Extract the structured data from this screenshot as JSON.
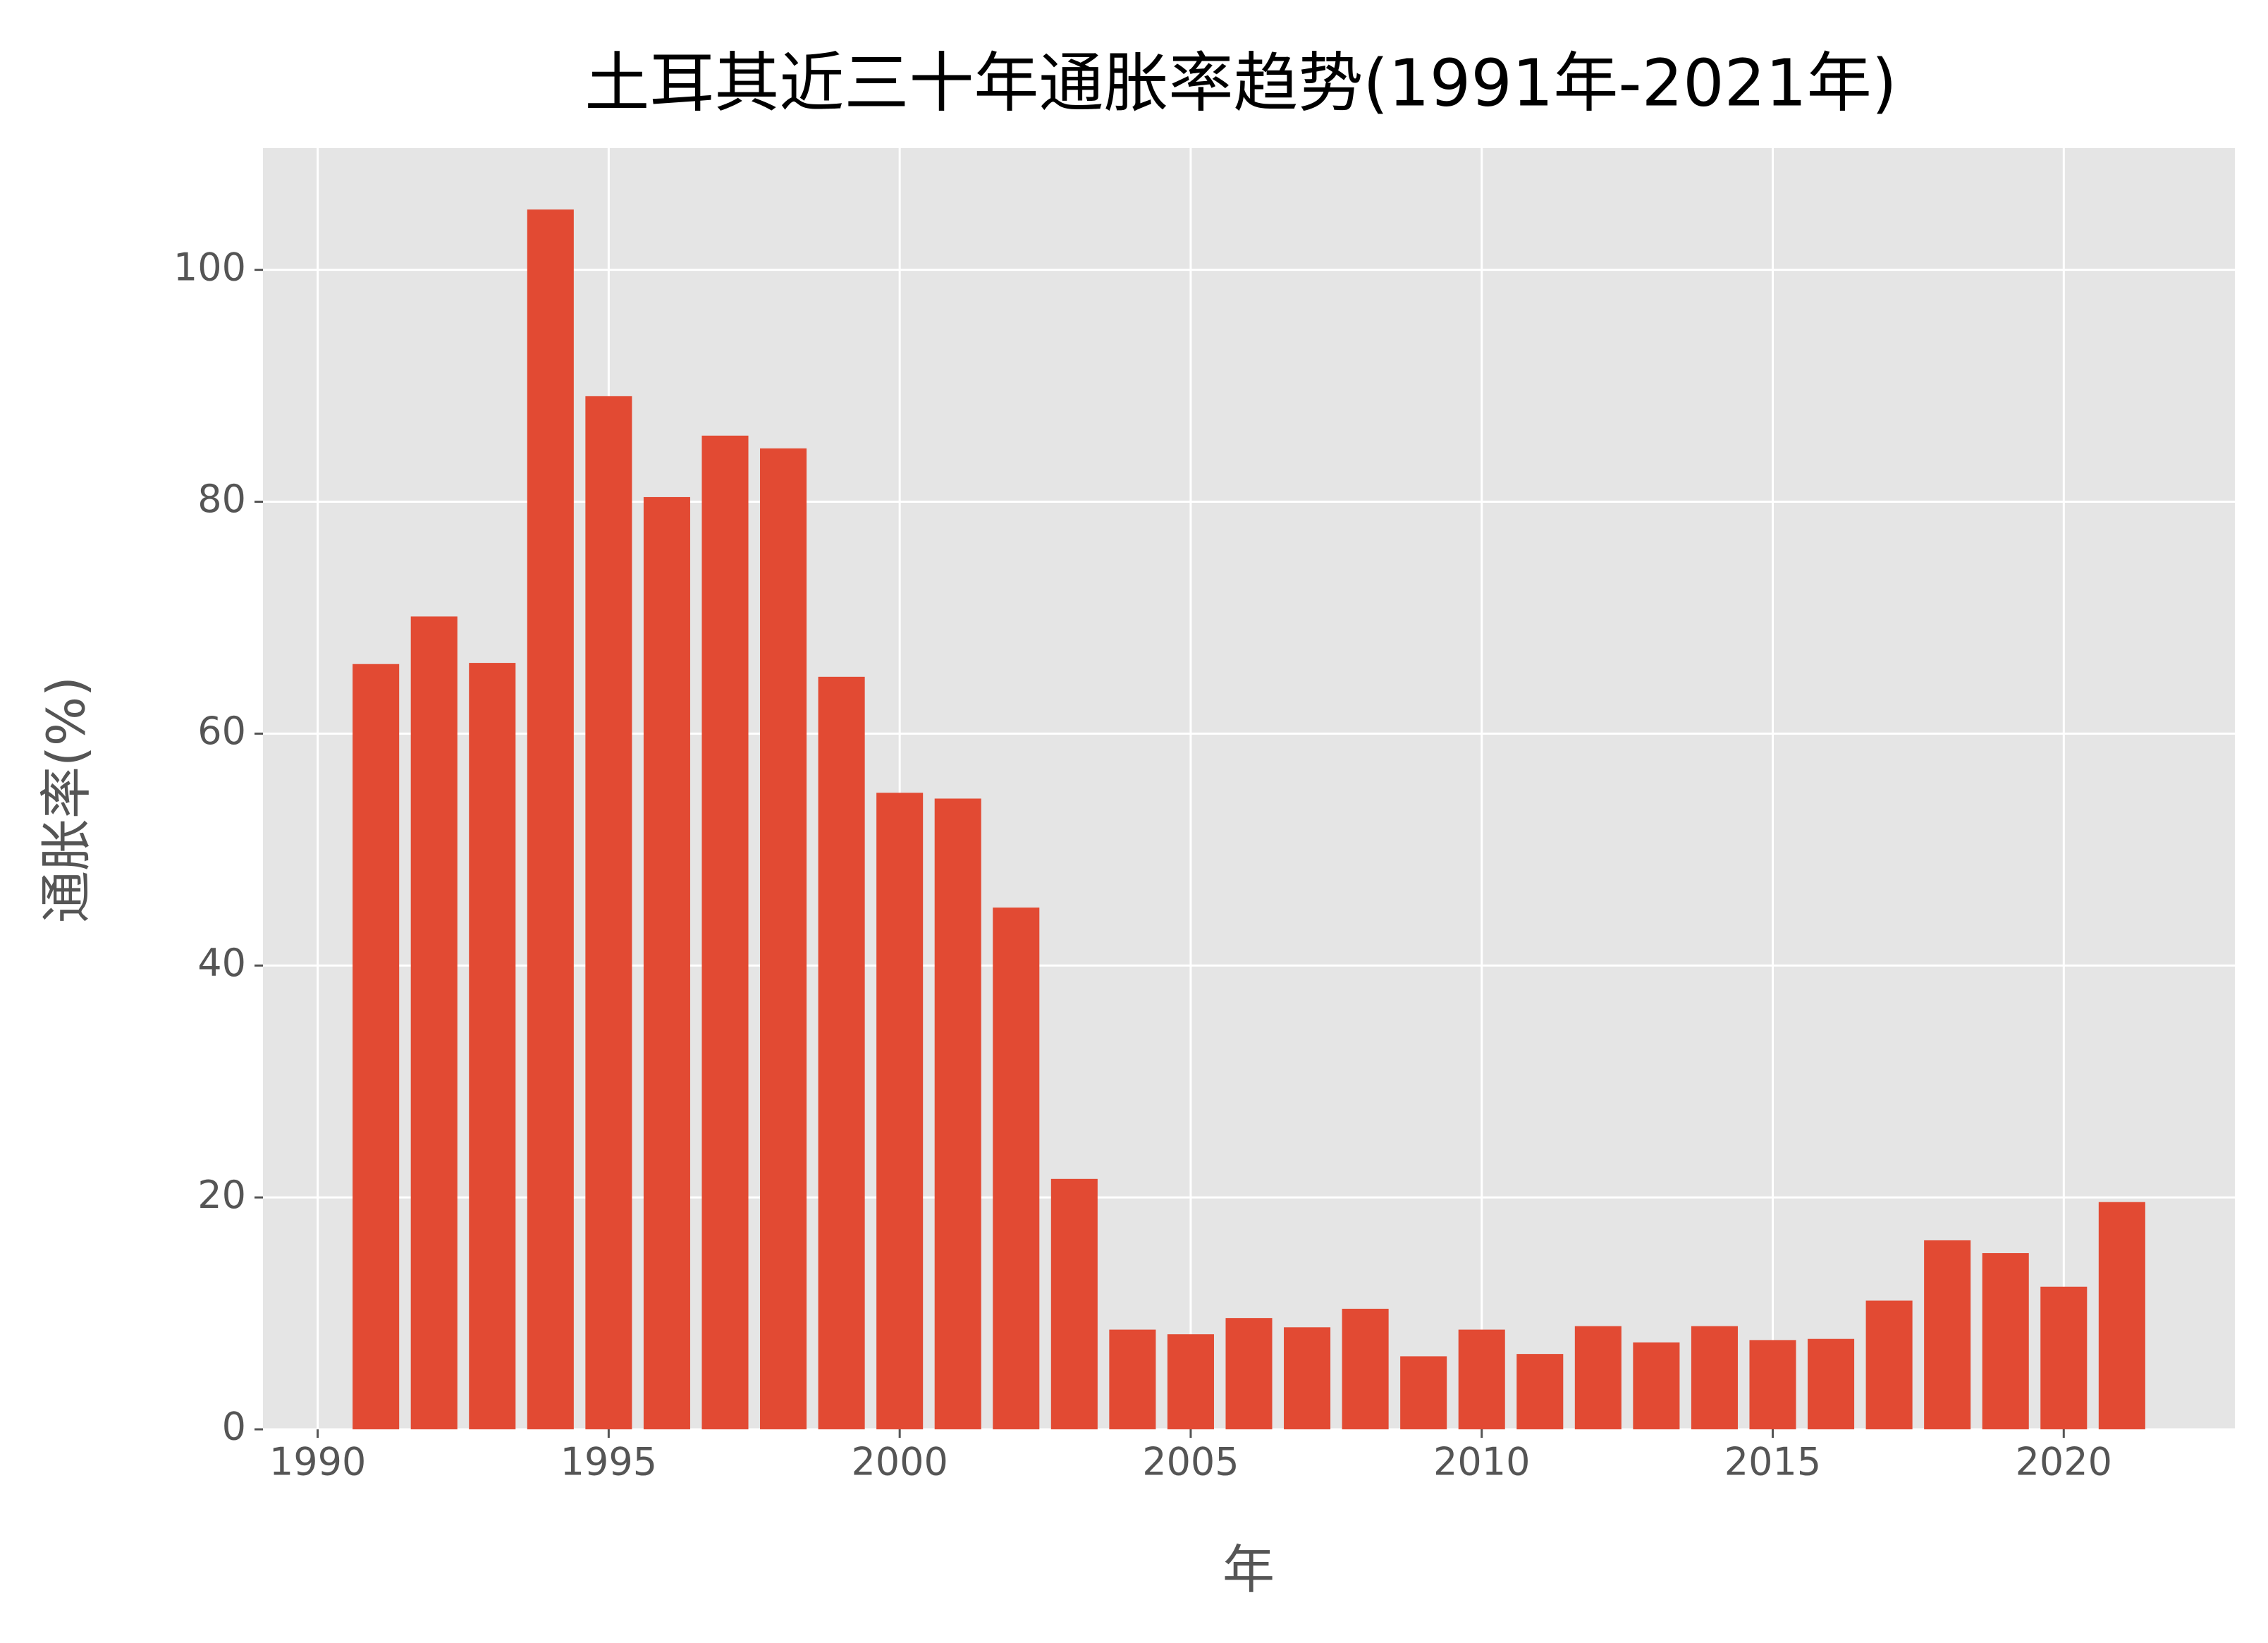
{
  "chart_data": {
    "type": "bar",
    "title": "土耳其近三十年通胀率趋势(1991年-2021年)",
    "x_label": "年",
    "y_label": "通胀率(%)",
    "x": [
      1991,
      1992,
      1993,
      1994,
      1995,
      1996,
      1997,
      1998,
      1999,
      2000,
      2001,
      2002,
      2003,
      2004,
      2005,
      2006,
      2007,
      2008,
      2009,
      2010,
      2011,
      2012,
      2013,
      2014,
      2015,
      2016,
      2017,
      2018,
      2019,
      2020,
      2021
    ],
    "values": [
      66.0,
      70.1,
      66.1,
      105.2,
      89.1,
      80.4,
      85.7,
      84.6,
      64.9,
      54.9,
      54.4,
      45.0,
      21.6,
      8.6,
      8.2,
      9.6,
      8.8,
      10.4,
      6.3,
      8.6,
      6.5,
      8.9,
      7.5,
      8.9,
      7.7,
      7.8,
      11.1,
      16.3,
      15.2,
      12.3,
      19.6
    ],
    "color": "#E24A33",
    "xlim": [
      1989.06,
      2022.94
    ],
    "xticks": [
      1990,
      1995,
      2000,
      2005,
      2010,
      2015,
      2020
    ],
    "ylim": [
      0,
      110.5
    ],
    "yticks": [
      0,
      20,
      40,
      60,
      80,
      100
    ],
    "grid": true
  }
}
